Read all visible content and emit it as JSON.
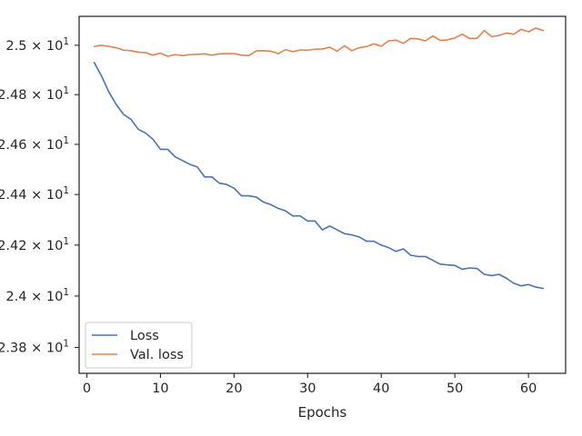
{
  "chart_data": {
    "type": "line",
    "xlabel": "Epochs",
    "ylabel": "",
    "xlim": [
      -1.05,
      65.05
    ],
    "ylim": [
      23.7,
      25.118
    ],
    "x_ticks": [
      {
        "value": 0,
        "label": "0"
      },
      {
        "value": 10,
        "label": "10"
      },
      {
        "value": 20,
        "label": "20"
      },
      {
        "value": 30,
        "label": "30"
      },
      {
        "value": 40,
        "label": "40"
      },
      {
        "value": 50,
        "label": "50"
      },
      {
        "value": 60,
        "label": "60"
      }
    ],
    "y_ticks": [
      {
        "value": 23.8,
        "mantissa": "2.38",
        "exp": "1"
      },
      {
        "value": 24.0,
        "mantissa": "2.4",
        "exp": "1"
      },
      {
        "value": 24.2,
        "mantissa": "2.42",
        "exp": "1"
      },
      {
        "value": 24.4,
        "mantissa": "2.44",
        "exp": "1"
      },
      {
        "value": 24.6,
        "mantissa": "2.46",
        "exp": "1"
      },
      {
        "value": 24.8,
        "mantissa": "2.48",
        "exp": "1"
      },
      {
        "value": 25.0,
        "mantissa": "2.5",
        "exp": "1"
      }
    ],
    "y_scale": "log",
    "grid": false,
    "legend_position": "lower-left",
    "x": [
      1,
      2,
      3,
      4,
      5,
      6,
      7,
      8,
      9,
      10,
      11,
      12,
      13,
      14,
      15,
      16,
      17,
      18,
      19,
      20,
      21,
      22,
      23,
      24,
      25,
      26,
      27,
      28,
      29,
      30,
      31,
      32,
      33,
      34,
      35,
      36,
      37,
      38,
      39,
      40,
      41,
      42,
      43,
      44,
      45,
      46,
      47,
      48,
      49,
      50,
      51,
      52,
      53,
      54,
      55,
      56,
      57,
      58,
      59,
      60,
      61,
      62
    ],
    "series": [
      {
        "name": "Loss",
        "color": "#4c72b0",
        "values": [
          24.93,
          24.875,
          24.81,
          24.76,
          24.72,
          24.7,
          24.66,
          24.645,
          24.62,
          24.58,
          24.58,
          24.55,
          24.535,
          24.52,
          24.51,
          24.47,
          24.47,
          24.445,
          24.44,
          24.425,
          24.395,
          24.395,
          24.39,
          24.37,
          24.36,
          24.345,
          24.335,
          24.315,
          24.315,
          24.295,
          24.295,
          24.26,
          24.275,
          24.26,
          24.245,
          24.24,
          24.232,
          24.215,
          24.215,
          24.2,
          24.19,
          24.175,
          24.185,
          24.16,
          24.155,
          24.155,
          24.14,
          24.125,
          24.122,
          24.12,
          24.105,
          24.11,
          24.108,
          24.085,
          24.08,
          24.085,
          24.07,
          24.05,
          24.04,
          24.045,
          24.035,
          24.03
        ]
      },
      {
        "name": "Val. loss",
        "color": "#dd8452",
        "values": [
          24.995,
          25.0,
          24.995,
          24.99,
          24.98,
          24.978,
          24.972,
          24.97,
          24.96,
          24.968,
          24.955,
          24.962,
          24.958,
          24.962,
          24.963,
          24.965,
          24.96,
          24.965,
          24.966,
          24.966,
          24.96,
          24.958,
          24.977,
          24.978,
          24.976,
          24.966,
          24.982,
          24.974,
          24.981,
          24.98,
          24.984,
          24.985,
          24.992,
          24.976,
          24.998,
          24.978,
          24.99,
          24.995,
          25.006,
          24.996,
          25.018,
          25.021,
          25.008,
          25.028,
          25.026,
          25.018,
          25.038,
          25.02,
          25.022,
          25.03,
          25.045,
          25.028,
          25.028,
          25.06,
          25.035,
          25.04,
          25.05,
          25.045,
          25.065,
          25.055,
          25.07,
          25.06
        ]
      }
    ]
  }
}
